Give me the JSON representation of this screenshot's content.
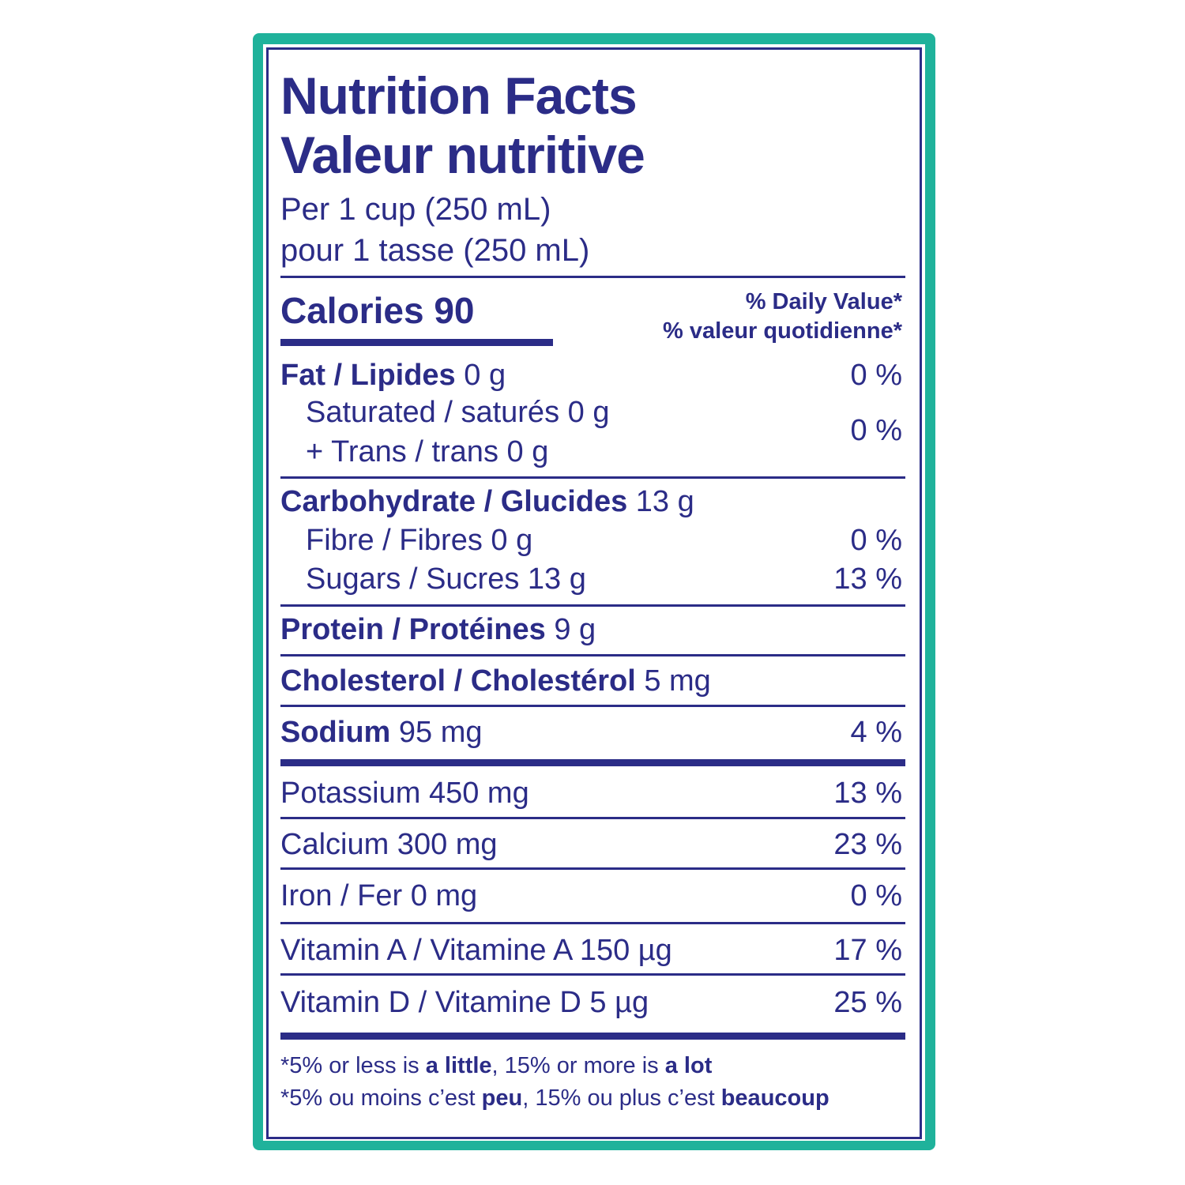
{
  "header": {
    "title": [
      "Nutrition Facts",
      "Valeur nutritive"
    ],
    "serving": [
      "Per 1 cup (250 mL)",
      "pour 1 tasse (250 mL)"
    ]
  },
  "calories": {
    "label": "Calories",
    "amount": "90"
  },
  "daily_value_header": [
    "% Daily Value*",
    "% valeur quotidienne*"
  ],
  "rows": {
    "fat": {
      "name": "Fat / Lipides",
      "amount": "0 g",
      "dv": "0 %"
    },
    "saturated_trans": {
      "saturated": "Saturated / saturés 0 g",
      "trans": "+ Trans / trans 0 g",
      "dv": "0 %"
    },
    "carbohydrate": {
      "name": "Carbohydrate / Glucides",
      "amount": "13 g"
    },
    "fibre": {
      "name": "Fibre / Fibres 0 g",
      "dv": "0 %"
    },
    "sugars": {
      "name": "Sugars / Sucres 13 g",
      "dv": "13 %"
    },
    "protein": {
      "name": "Protein / Protéines",
      "amount": "9 g"
    },
    "cholesterol": {
      "name": "Cholesterol / Cholestérol",
      "amount": "5 mg"
    },
    "sodium": {
      "name": "Sodium",
      "amount": "95 mg",
      "dv": "4 %"
    },
    "potassium": {
      "name": "Potassium 450 mg",
      "dv": "13 %"
    },
    "calcium": {
      "name": "Calcium 300 mg",
      "dv": "23 %"
    },
    "iron": {
      "name": "Iron / Fer 0 mg",
      "dv": "0 %"
    },
    "vitamin_a": {
      "name": "Vitamin A / Vitamine A 150 µg",
      "dv": "17 %"
    },
    "vitamin_d": {
      "name": "Vitamin D / Vitamine D 5 µg",
      "dv": "25 %"
    }
  },
  "footnote": [
    [
      "*5% or less is ",
      "a little",
      ", 15% or more is ",
      "a lot"
    ],
    [
      "*5% ou moins c’est ",
      "peu",
      ", 15% ou plus c’est ",
      "beaucoup"
    ]
  ]
}
